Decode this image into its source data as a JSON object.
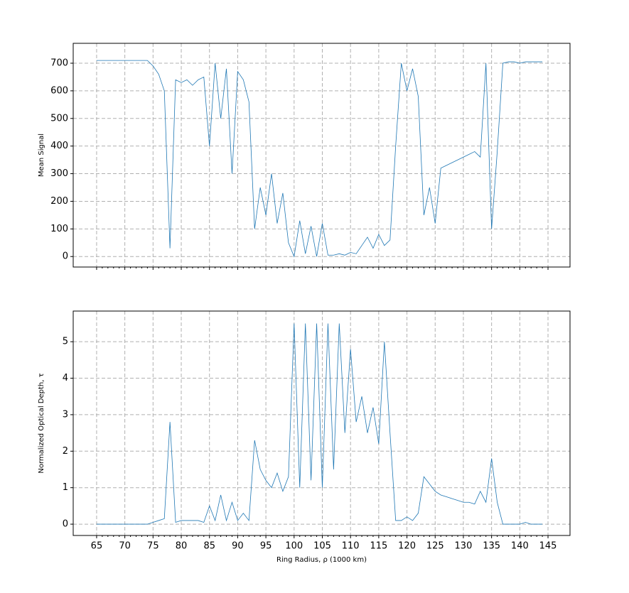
{
  "chart_data": [
    {
      "type": "line",
      "ylabel": "Mean Signal",
      "x": [
        65,
        66,
        67,
        68,
        69,
        70,
        71,
        72,
        73,
        74,
        75,
        76,
        77,
        78,
        79,
        80,
        81,
        82,
        83,
        84,
        85,
        86,
        87,
        88,
        89,
        90,
        91,
        92,
        93,
        94,
        95,
        96,
        97,
        98,
        99,
        100,
        101,
        102,
        103,
        104,
        105,
        106,
        107,
        108,
        109,
        110,
        111,
        112,
        113,
        114,
        115,
        116,
        117,
        118,
        119,
        120,
        121,
        122,
        123,
        124,
        125,
        126,
        127,
        128,
        129,
        130,
        131,
        132,
        133,
        134,
        135,
        136,
        137,
        138,
        139,
        140,
        141,
        142,
        143,
        144
      ],
      "series": [
        {
          "color": "#1f77b4",
          "values": [
            710,
            710,
            710,
            710,
            710,
            710,
            710,
            710,
            710,
            710,
            690,
            660,
            600,
            30,
            640,
            630,
            640,
            620,
            640,
            650,
            400,
            700,
            500,
            680,
            300,
            670,
            640,
            560,
            100,
            250,
            150,
            300,
            120,
            230,
            50,
            0,
            130,
            10,
            110,
            0,
            120,
            5,
            5,
            10,
            5,
            15,
            10,
            40,
            70,
            30,
            80,
            40,
            60,
            400,
            700,
            600,
            680,
            580,
            150,
            250,
            120,
            320,
            330,
            340,
            350,
            360,
            370,
            380,
            360,
            700,
            100,
            380,
            700,
            705,
            705,
            700,
            705,
            705,
            705,
            705
          ]
        }
      ],
      "xlim": [
        60.85,
        148.9
      ],
      "ylim": [
        -38,
        772
      ],
      "xticks": [
        65,
        70,
        75,
        80,
        85,
        90,
        95,
        100,
        105,
        110,
        115,
        120,
        125,
        130,
        135,
        140,
        145
      ],
      "yticks": [
        0,
        100,
        200,
        300,
        400,
        500,
        600,
        700
      ],
      "xticklabels": false,
      "grid": true
    },
    {
      "type": "line",
      "ylabel": "Normalized Optical Depth, τ",
      "xlabel": "Ring Radius, ρ (1000 km)",
      "x": [
        65,
        66,
        67,
        68,
        69,
        70,
        71,
        72,
        73,
        74,
        75,
        76,
        77,
        78,
        79,
        80,
        81,
        82,
        83,
        84,
        85,
        86,
        87,
        88,
        89,
        90,
        91,
        92,
        93,
        94,
        95,
        96,
        97,
        98,
        99,
        100,
        101,
        102,
        103,
        104,
        105,
        106,
        107,
        108,
        109,
        110,
        111,
        112,
        113,
        114,
        115,
        116,
        117,
        118,
        119,
        120,
        121,
        122,
        123,
        124,
        125,
        126,
        127,
        128,
        129,
        130,
        131,
        132,
        133,
        134,
        135,
        136,
        137,
        138,
        139,
        140,
        141,
        142,
        143,
        144
      ],
      "series": [
        {
          "color": "#1f77b4",
          "values": [
            0,
            0,
            0,
            0,
            0,
            0,
            0,
            0,
            0,
            0,
            0.05,
            0.1,
            0.15,
            2.8,
            0.05,
            0.1,
            0.1,
            0.1,
            0.1,
            0.05,
            0.5,
            0.1,
            0.8,
            0.1,
            0.6,
            0.1,
            0.3,
            0.1,
            2.3,
            1.5,
            1.2,
            1.0,
            1.4,
            0.9,
            1.3,
            5.5,
            1.0,
            5.5,
            1.2,
            5.5,
            1.0,
            5.5,
            1.5,
            5.5,
            2.5,
            4.8,
            2.8,
            3.5,
            2.5,
            3.2,
            2.2,
            5.0,
            2.5,
            0.1,
            0.1,
            0.2,
            0.1,
            0.3,
            1.3,
            1.1,
            0.9,
            0.8,
            0.75,
            0.7,
            0.65,
            0.6,
            0.6,
            0.55,
            0.9,
            0.6,
            1.8,
            0.6,
            0,
            0,
            0,
            0,
            0.05,
            0,
            0,
            0
          ]
        }
      ],
      "xlim": [
        60.85,
        148.9
      ],
      "ylim": [
        -0.31,
        5.84
      ],
      "xticks": [
        65,
        70,
        75,
        80,
        85,
        90,
        95,
        100,
        105,
        110,
        115,
        120,
        125,
        130,
        135,
        140,
        145
      ],
      "yticks": [
        0,
        1,
        2,
        3,
        4,
        5
      ],
      "xticklabels": true,
      "grid": true
    }
  ]
}
